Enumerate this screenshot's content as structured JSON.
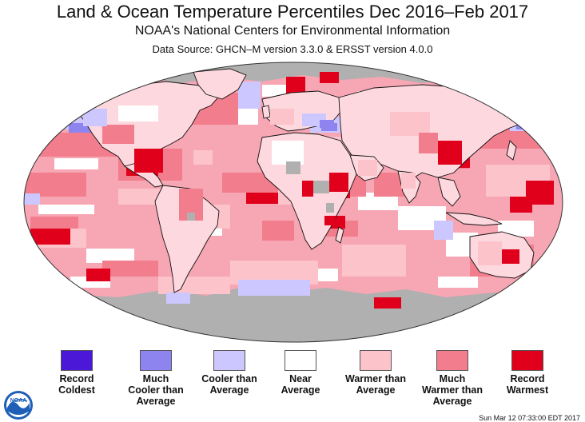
{
  "header": {
    "title": "Land & Ocean Temperature Percentiles Dec 2016–Feb 2017",
    "subtitle": "NOAA's National Centers for Environmental Information",
    "source": "Data Source: GHCN–M version 3.3.0 & ERSST version 4.0.0"
  },
  "map": {
    "colors": {
      "ocean_base": "#f7a6b3",
      "land_base": "#fdd9df",
      "missing": "#b0b0b0",
      "record_warm": "#e0001b",
      "much_warm": "#f27d8c",
      "warm": "#fcc3cb",
      "near": "#ffffff",
      "cool": "#ccc8ff",
      "much_cool": "#8d84f0",
      "record_cool": "#4c18d8",
      "coast": "#111111"
    }
  },
  "legend": {
    "items": [
      {
        "label_line1": "Record",
        "label_line2": "Coldest",
        "label_line3": "",
        "color": "#4c18d8"
      },
      {
        "label_line1": "Much",
        "label_line2": "Cooler than",
        "label_line3": "Average",
        "color": "#8d84f0"
      },
      {
        "label_line1": "Cooler than",
        "label_line2": "Average",
        "label_line3": "",
        "color": "#ccc8ff"
      },
      {
        "label_line1": "Near",
        "label_line2": "Average",
        "label_line3": "",
        "color": "#ffffff"
      },
      {
        "label_line1": "Warmer than",
        "label_line2": "Average",
        "label_line3": "",
        "color": "#fcc3cb"
      },
      {
        "label_line1": "Much",
        "label_line2": "Warmer than",
        "label_line3": "Average",
        "color": "#f27d8c"
      },
      {
        "label_line1": "Record",
        "label_line2": "Warmest",
        "label_line3": "",
        "color": "#e0001b"
      }
    ]
  },
  "footer": {
    "timestamp": "Sun Mar 12 07:33:00 EDT 2017",
    "logo_text": "NOAA"
  }
}
